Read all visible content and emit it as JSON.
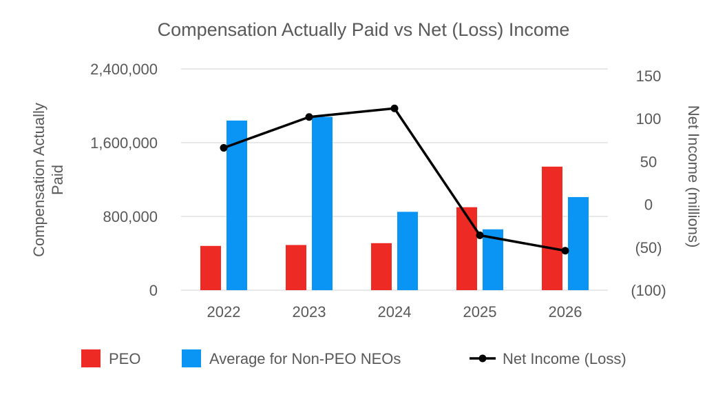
{
  "chart_data": {
    "type": "bar",
    "title": "Compensation Actually Paid vs Net (Loss) Income",
    "categories": [
      "2022",
      "2023",
      "2024",
      "2025",
      "2026"
    ],
    "y_left": {
      "label_lines": [
        "Compensation Actually",
        "Paid"
      ],
      "range": [
        0,
        2400000
      ],
      "ticks": [
        {
          "value": 0,
          "label": "0"
        },
        {
          "value": 800000,
          "label": "800,000"
        },
        {
          "value": 1600000,
          "label": "1,600,000"
        },
        {
          "value": 2400000,
          "label": "2,400,000"
        }
      ]
    },
    "y_right": {
      "label": "Net Income (millions)",
      "range": [
        -100,
        150
      ],
      "ticks": [
        {
          "value": -100,
          "label": "(100)"
        },
        {
          "value": -50,
          "label": "(50)"
        },
        {
          "value": 0,
          "label": "0"
        },
        {
          "value": 50,
          "label": "50"
        },
        {
          "value": 100,
          "label": "100"
        },
        {
          "value": 150,
          "label": "150"
        }
      ]
    },
    "series": [
      {
        "name": "PEO",
        "kind": "bar",
        "axis": "left",
        "color": "#ee2a24",
        "values": [
          480000,
          490000,
          510000,
          900000,
          1340000
        ]
      },
      {
        "name": "Average for Non-PEO NEOs",
        "kind": "bar",
        "axis": "left",
        "color": "#0a95f5",
        "values": [
          1840000,
          1880000,
          850000,
          660000,
          1010000
        ]
      },
      {
        "name": "Net Income (Loss)",
        "kind": "line",
        "axis": "right",
        "color": "#000000",
        "values": [
          66,
          102,
          112,
          -36,
          -54
        ]
      }
    ],
    "grid": true,
    "legend_position": "bottom"
  }
}
